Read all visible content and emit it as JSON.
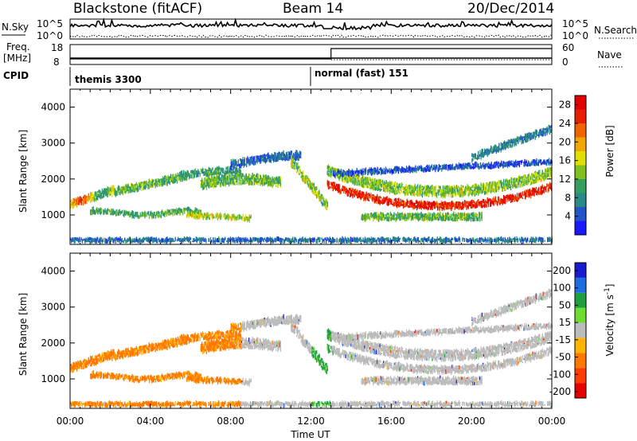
{
  "header": {
    "site": "Blackstone (fitACF)",
    "beam": "Beam 14",
    "date": "20/Dec/2014"
  },
  "top_panels": {
    "nsky_label": "N.Sky",
    "nsearch_label": "N.Search",
    "nsky_ticks": [
      "10^5",
      "10^0"
    ],
    "nsearch_ticks": [
      "10^5",
      "10^0"
    ],
    "freq_label": "Freq.",
    "freq_unit": "[MHz]",
    "freq_ticks": [
      "18",
      "8"
    ],
    "nave_label": "Nave",
    "nave_ticks": [
      "60",
      "0"
    ],
    "cpid_label": "CPID",
    "cpid_segments": [
      "themis 3300",
      "normal (fast) 151"
    ]
  },
  "x_axis": {
    "label": "Time UT",
    "ticks": [
      "00:00",
      "04:00",
      "08:00",
      "12:00",
      "16:00",
      "20:00",
      "00:00"
    ]
  },
  "colors": {
    "power": [
      "#1919ff",
      "#2255c8",
      "#2a8a88",
      "#33a060",
      "#7fc020",
      "#e0e000",
      "#f0a800",
      "#f06400",
      "#e81e00",
      "#e00000"
    ],
    "velocity": [
      "#1a1ad0",
      "#1e6ee0",
      "#1ea040",
      "#6edc30",
      "#bcbcbc",
      "#ffb400",
      "#ff7800",
      "#ff3c00",
      "#e60000"
    ]
  },
  "chart_data": [
    {
      "type": "heatmap",
      "title": "",
      "ylabel": "Slant Range [km]",
      "xlabel": "",
      "x_range": [
        "00:00",
        "24:00"
      ],
      "ylim": [
        180,
        4500
      ],
      "y_ticks": [
        "1000",
        "2000",
        "3000",
        "4000"
      ],
      "colorbar": {
        "label": "Power [dB]",
        "ticks": [
          "4",
          "8",
          "12",
          "16",
          "20",
          "24",
          "28"
        ],
        "range": [
          0,
          30
        ]
      }
    },
    {
      "type": "heatmap",
      "title": "",
      "ylabel": "Slant Range [km]",
      "xlabel": "Time UT",
      "x_range": [
        "00:00",
        "24:00"
      ],
      "ylim": [
        180,
        4500
      ],
      "y_ticks": [
        "1000",
        "2000",
        "3000",
        "4000"
      ],
      "colorbar": {
        "label": "Velocity [m s^-1]",
        "ticks": [
          "200",
          "100",
          "50",
          "15",
          "-15",
          "-50",
          "-100",
          "-200"
        ],
        "range": [
          -250,
          250
        ]
      }
    }
  ]
}
